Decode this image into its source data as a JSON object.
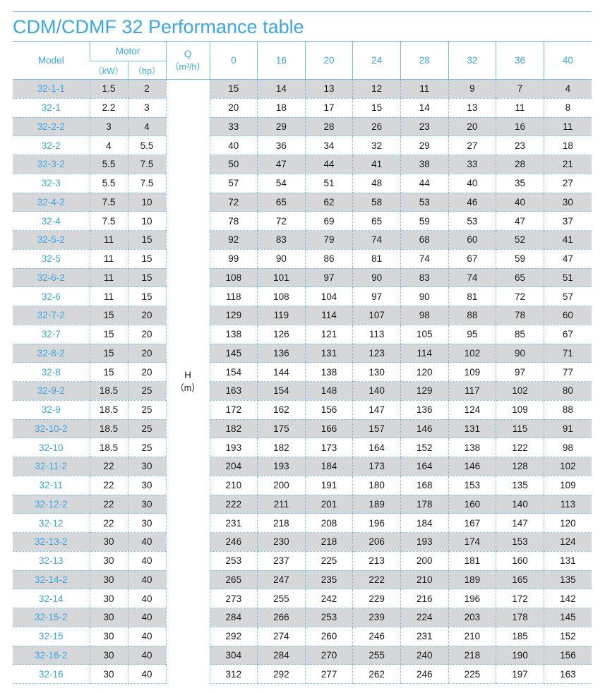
{
  "title": "CDM/CDMF 32 Performance table",
  "header": {
    "model": "Model",
    "motor": "Motor",
    "kw": "（kW）",
    "hp": "（hp）",
    "q": "Q",
    "q_unit": "（m³/h）",
    "h": "H",
    "h_unit": "（m）",
    "flows": [
      "0",
      "16",
      "20",
      "24",
      "28",
      "32",
      "36",
      "40"
    ]
  },
  "rows": [
    [
      "32-1-1",
      "1.5",
      "2",
      "15",
      "14",
      "13",
      "12",
      "11",
      "9",
      "7",
      "4"
    ],
    [
      "32-1",
      "2.2",
      "3",
      "20",
      "18",
      "17",
      "15",
      "14",
      "13",
      "11",
      "8"
    ],
    [
      "32-2-2",
      "3",
      "4",
      "33",
      "29",
      "28",
      "26",
      "23",
      "20",
      "16",
      "11"
    ],
    [
      "32-2",
      "4",
      "5.5",
      "40",
      "36",
      "34",
      "32",
      "29",
      "27",
      "23",
      "18"
    ],
    [
      "32-3-2",
      "5.5",
      "7.5",
      "50",
      "47",
      "44",
      "41",
      "38",
      "33",
      "28",
      "21"
    ],
    [
      "32-3",
      "5.5",
      "7.5",
      "57",
      "54",
      "51",
      "48",
      "44",
      "40",
      "35",
      "27"
    ],
    [
      "32-4-2",
      "7.5",
      "10",
      "72",
      "65",
      "62",
      "58",
      "53",
      "46",
      "40",
      "30"
    ],
    [
      "32-4",
      "7.5",
      "10",
      "78",
      "72",
      "69",
      "65",
      "59",
      "53",
      "47",
      "37"
    ],
    [
      "32-5-2",
      "11",
      "15",
      "92",
      "83",
      "79",
      "74",
      "68",
      "60",
      "52",
      "41"
    ],
    [
      "32-5",
      "11",
      "15",
      "99",
      "90",
      "86",
      "81",
      "74",
      "67",
      "59",
      "47"
    ],
    [
      "32-6-2",
      "11",
      "15",
      "108",
      "101",
      "97",
      "90",
      "83",
      "74",
      "65",
      "51"
    ],
    [
      "32-6",
      "11",
      "15",
      "118",
      "108",
      "104",
      "97",
      "90",
      "81",
      "72",
      "57"
    ],
    [
      "32-7-2",
      "15",
      "20",
      "129",
      "119",
      "114",
      "107",
      "98",
      "88",
      "78",
      "60"
    ],
    [
      "32-7",
      "15",
      "20",
      "138",
      "126",
      "121",
      "113",
      "105",
      "95",
      "85",
      "67"
    ],
    [
      "32-8-2",
      "15",
      "20",
      "145",
      "136",
      "131",
      "123",
      "114",
      "102",
      "90",
      "71"
    ],
    [
      "32-8",
      "15",
      "20",
      "154",
      "144",
      "138",
      "130",
      "120",
      "109",
      "97",
      "77"
    ],
    [
      "32-9-2",
      "18.5",
      "25",
      "163",
      "154",
      "148",
      "140",
      "129",
      "117",
      "102",
      "80"
    ],
    [
      "32-9",
      "18.5",
      "25",
      "172",
      "162",
      "156",
      "147",
      "136",
      "124",
      "109",
      "88"
    ],
    [
      "32-10-2",
      "18.5",
      "25",
      "182",
      "175",
      "166",
      "157",
      "146",
      "131",
      "115",
      "91"
    ],
    [
      "32-10",
      "18.5",
      "25",
      "193",
      "182",
      "173",
      "164",
      "152",
      "138",
      "122",
      "98"
    ],
    [
      "32-11-2",
      "22",
      "30",
      "204",
      "193",
      "184",
      "173",
      "164",
      "146",
      "128",
      "102"
    ],
    [
      "32-11",
      "22",
      "30",
      "210",
      "200",
      "191",
      "180",
      "168",
      "153",
      "135",
      "109"
    ],
    [
      "32-12-2",
      "22",
      "30",
      "222",
      "211",
      "201",
      "189",
      "178",
      "160",
      "140",
      "113"
    ],
    [
      "32-12",
      "22",
      "30",
      "231",
      "218",
      "208",
      "196",
      "184",
      "167",
      "147",
      "120"
    ],
    [
      "32-13-2",
      "30",
      "40",
      "246",
      "230",
      "218",
      "206",
      "193",
      "174",
      "153",
      "124"
    ],
    [
      "32-13",
      "30",
      "40",
      "253",
      "237",
      "225",
      "213",
      "200",
      "181",
      "160",
      "131"
    ],
    [
      "32-14-2",
      "30",
      "40",
      "265",
      "247",
      "235",
      "222",
      "210",
      "189",
      "165",
      "135"
    ],
    [
      "32-14",
      "30",
      "40",
      "273",
      "255",
      "242",
      "229",
      "216",
      "196",
      "172",
      "142"
    ],
    [
      "32-15-2",
      "30",
      "40",
      "284",
      "266",
      "253",
      "239",
      "224",
      "203",
      "178",
      "145"
    ],
    [
      "32-15",
      "30",
      "40",
      "292",
      "274",
      "260",
      "246",
      "231",
      "210",
      "185",
      "152"
    ],
    [
      "32-16-2",
      "30",
      "40",
      "304",
      "284",
      "270",
      "255",
      "240",
      "218",
      "190",
      "156"
    ],
    [
      "32-16",
      "30",
      "40",
      "312",
      "292",
      "277",
      "262",
      "246",
      "225",
      "197",
      "163"
    ]
  ]
}
